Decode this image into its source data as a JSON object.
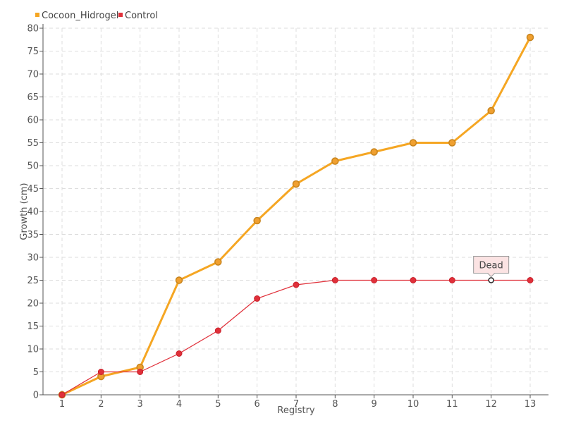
{
  "chart_data": {
    "type": "line",
    "title": "",
    "xlabel": "Registry",
    "ylabel": "Growth (cm)",
    "x": [
      1,
      2,
      3,
      4,
      5,
      6,
      7,
      8,
      9,
      10,
      11,
      12,
      13
    ],
    "ylim": [
      0,
      80
    ],
    "yticks": [
      0,
      5,
      10,
      15,
      20,
      25,
      30,
      35,
      40,
      45,
      50,
      55,
      60,
      65,
      70,
      75,
      80
    ],
    "grid": true,
    "legend_position": "top-left",
    "series": [
      {
        "name": "Cocoon_Hidrogel",
        "color": "#f5a623",
        "values": [
          0,
          4,
          6,
          25,
          29,
          38,
          46,
          51,
          53,
          55,
          55,
          62,
          78
        ]
      },
      {
        "name": "Control",
        "color": "#e0303a",
        "values": [
          0,
          5,
          5,
          9,
          14,
          21,
          24,
          25,
          25,
          25,
          25,
          25,
          25
        ]
      }
    ],
    "annotations": [
      {
        "text": "Dead",
        "series": "Control",
        "x": 12,
        "y": 25
      }
    ]
  }
}
